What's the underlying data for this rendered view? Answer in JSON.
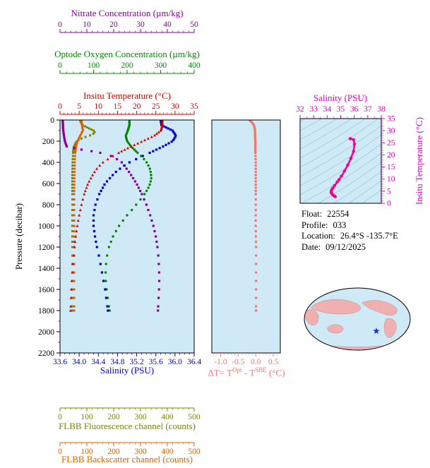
{
  "info": {
    "lines": [
      {
        "label": "Float:",
        "value": "22554"
      },
      {
        "label": "Profile:",
        "value": "033"
      },
      {
        "label": "Location:",
        "value": "26.4°S -135.7°E"
      },
      {
        "label": "Date:",
        "value": "09/12/2025"
      }
    ]
  },
  "colors": {
    "plot_background": "#cfe9f6",
    "axis_black": "#000000",
    "contour_line": "#90c8da",
    "map_land": "#f0b0b0",
    "map_ocean": "#cfe9f6",
    "star_blue": "#2233cc"
  },
  "chart_data": [
    {
      "id": "main-profile",
      "type": "line",
      "ylabel": "Pressure (decibar)",
      "ylim": [
        0,
        2200
      ],
      "yticks": [
        0,
        200,
        400,
        600,
        800,
        1000,
        1200,
        1400,
        1600,
        1800,
        2000,
        2200
      ],
      "axes": [
        {
          "key": "nitrate",
          "label": "Nitrate Concentration (µm/kg)",
          "color": "#880099",
          "range": [
            0,
            50
          ],
          "ticks": [
            "0",
            "10",
            "20",
            "30",
            "40",
            "50"
          ],
          "minor_step": 2
        },
        {
          "key": "oxygen",
          "label": "Optode Oxygen Concentration (µm/kg)",
          "color": "#008800",
          "range": [
            0,
            400
          ],
          "ticks": [
            "0",
            "100",
            "200",
            "300",
            "400"
          ],
          "minor_step": 20
        },
        {
          "key": "temperature",
          "label": "Insitu Temperature (°C)",
          "color": "#d40000",
          "range": [
            0,
            35
          ],
          "ticks": [
            "0",
            "5",
            "10",
            "15",
            "20",
            "25",
            "30",
            "35"
          ],
          "minor_step": 1
        },
        {
          "key": "salinity",
          "label": "Salinity (PSU)",
          "color": "#0000cc",
          "range": [
            33.6,
            36.4
          ],
          "ticks": [
            "33.6",
            "34.0",
            "34.4",
            "34.8",
            "35.2",
            "35.6",
            "36.0",
            "36.4"
          ],
          "minor_step": 0.1
        },
        {
          "key": "fluorescence",
          "label": "FLBB Fluorescence channel (counts)",
          "color": "#808000",
          "range": [
            0,
            500
          ],
          "ticks": [
            "0",
            "100",
            "200",
            "300",
            "400",
            "500"
          ],
          "minor_step": 20
        },
        {
          "key": "backscatter",
          "label": "FLBB Backscatter channel (counts)",
          "color": "#e06000",
          "range": [
            0,
            500
          ],
          "ticks": [
            "0",
            "100",
            "200",
            "300",
            "400",
            "500"
          ],
          "minor_step": 20
        }
      ],
      "series": {
        "temperature": [
          [
            0,
            26.7
          ],
          [
            50,
            26.7
          ],
          [
            100,
            26.3
          ],
          [
            150,
            24.5
          ],
          [
            200,
            21.5
          ],
          [
            250,
            18.5
          ],
          [
            300,
            15.8
          ],
          [
            350,
            13.3
          ],
          [
            400,
            11.2
          ],
          [
            450,
            9.8
          ],
          [
            500,
            8.8
          ],
          [
            600,
            7.3
          ],
          [
            700,
            6.3
          ],
          [
            800,
            5.6
          ],
          [
            900,
            5.0
          ],
          [
            1000,
            4.5
          ],
          [
            1100,
            4.1
          ],
          [
            1200,
            3.8
          ],
          [
            1300,
            3.5
          ],
          [
            1400,
            3.3
          ],
          [
            1500,
            3.1
          ],
          [
            1600,
            2.95
          ],
          [
            1700,
            2.85
          ],
          [
            1800,
            2.75
          ]
        ],
        "salinity": [
          [
            0,
            35.7
          ],
          [
            50,
            35.72
          ],
          [
            100,
            35.95
          ],
          [
            150,
            36.02
          ],
          [
            200,
            35.95
          ],
          [
            250,
            35.75
          ],
          [
            300,
            35.52
          ],
          [
            350,
            35.28
          ],
          [
            400,
            35.05
          ],
          [
            450,
            34.88
          ],
          [
            500,
            34.74
          ],
          [
            600,
            34.54
          ],
          [
            700,
            34.42
          ],
          [
            800,
            34.34
          ],
          [
            900,
            34.3
          ],
          [
            1000,
            34.3
          ],
          [
            1100,
            34.33
          ],
          [
            1200,
            34.37
          ],
          [
            1300,
            34.42
          ],
          [
            1400,
            34.46
          ],
          [
            1500,
            34.5
          ],
          [
            1600,
            34.54
          ],
          [
            1700,
            34.57
          ],
          [
            1800,
            34.6
          ]
        ],
        "oxygen": [
          [
            0,
            207
          ],
          [
            50,
            207
          ],
          [
            100,
            202
          ],
          [
            150,
            196
          ],
          [
            200,
            200
          ],
          [
            250,
            212
          ],
          [
            300,
            228
          ],
          [
            350,
            245
          ],
          [
            400,
            258
          ],
          [
            450,
            267
          ],
          [
            500,
            271
          ],
          [
            550,
            272
          ],
          [
            600,
            269
          ],
          [
            650,
            262
          ],
          [
            700,
            252
          ],
          [
            750,
            240
          ],
          [
            800,
            227
          ],
          [
            850,
            214
          ],
          [
            900,
            200
          ],
          [
            950,
            188
          ],
          [
            1000,
            176
          ],
          [
            1100,
            158
          ],
          [
            1200,
            146
          ],
          [
            1300,
            139
          ],
          [
            1400,
            136
          ],
          [
            1500,
            136
          ],
          [
            1600,
            139
          ],
          [
            1700,
            143
          ],
          [
            1800,
            148
          ]
        ],
        "nitrate": [
          [
            0,
            1.0
          ],
          [
            100,
            1.2
          ],
          [
            200,
            1.8
          ],
          [
            250,
            2.5
          ],
          [
            280,
            8.0
          ],
          [
            300,
            13.0
          ],
          [
            320,
            17.0
          ],
          [
            350,
            20.0
          ],
          [
            400,
            23.0
          ],
          [
            500,
            26.0
          ],
          [
            600,
            28.5
          ],
          [
            700,
            30.5
          ],
          [
            800,
            32.2
          ],
          [
            900,
            33.6
          ],
          [
            1000,
            34.8
          ],
          [
            1100,
            35.7
          ],
          [
            1200,
            36.3
          ],
          [
            1300,
            36.7
          ],
          [
            1400,
            36.9
          ],
          [
            1500,
            37.0
          ],
          [
            1600,
            36.9
          ],
          [
            1700,
            36.7
          ],
          [
            1800,
            36.5
          ]
        ],
        "fluorescence": [
          [
            0,
            75
          ],
          [
            25,
            78
          ],
          [
            50,
            85
          ],
          [
            75,
            105
          ],
          [
            100,
            125
          ],
          [
            120,
            130
          ],
          [
            140,
            118
          ],
          [
            160,
            95
          ],
          [
            180,
            75
          ],
          [
            200,
            62
          ],
          [
            250,
            52
          ],
          [
            300,
            49
          ],
          [
            400,
            47
          ],
          [
            500,
            46
          ],
          [
            700,
            46
          ],
          [
            1000,
            46
          ],
          [
            1400,
            46
          ],
          [
            1800,
            46
          ]
        ],
        "backscatter": [
          [
            0,
            80
          ],
          [
            50,
            82
          ],
          [
            100,
            85
          ],
          [
            150,
            75
          ],
          [
            200,
            65
          ],
          [
            250,
            60
          ],
          [
            300,
            57
          ],
          [
            400,
            55
          ],
          [
            500,
            54
          ],
          [
            700,
            53
          ],
          [
            1000,
            53
          ],
          [
            1400,
            53
          ],
          [
            1800,
            53
          ]
        ]
      }
    },
    {
      "id": "delta-t",
      "type": "scatter",
      "color": "#f07870",
      "xlim": [
        -1.25,
        0.7
      ],
      "xticks": [
        "-1.0",
        "-0.5",
        "0.0",
        "0.5"
      ],
      "label_parts": {
        "prefix": "ΔT= T",
        "sup1": "Opt",
        "mid": " - T",
        "sup2": "SBE",
        "suffix": " (°C)"
      },
      "points": [
        [
          0,
          -0.18
        ],
        [
          25,
          -0.1
        ],
        [
          50,
          -0.05
        ],
        [
          75,
          -0.03
        ],
        [
          100,
          -0.02
        ],
        [
          150,
          -0.02
        ],
        [
          200,
          -0.01
        ],
        [
          300,
          -0.01
        ],
        [
          400,
          0.0
        ],
        [
          500,
          0.0
        ],
        [
          600,
          0.0
        ],
        [
          800,
          0.0
        ],
        [
          1000,
          0.0
        ],
        [
          1200,
          0.01
        ],
        [
          1400,
          0.01
        ],
        [
          1600,
          0.01
        ],
        [
          1800,
          0.01
        ]
      ]
    },
    {
      "id": "ts-diagram",
      "type": "line",
      "xlabel": "Salinity (PSU)",
      "ylabel": "Insitu Temperature (°C)",
      "color": "#f00090",
      "label_color": "#e000c0",
      "xlim": [
        32,
        38
      ],
      "xticks": [
        "32",
        "33",
        "34",
        "35",
        "36",
        "37",
        "38"
      ],
      "ylim": [
        0,
        35
      ],
      "yticks": [
        "0",
        "5",
        "10",
        "15",
        "20",
        "25",
        "30",
        "35"
      ],
      "points": [
        [
          35.7,
          26.7
        ],
        [
          35.72,
          26.7
        ],
        [
          35.95,
          26.3
        ],
        [
          36.02,
          24.5
        ],
        [
          35.95,
          21.5
        ],
        [
          35.75,
          18.5
        ],
        [
          35.52,
          15.8
        ],
        [
          35.28,
          13.3
        ],
        [
          35.05,
          11.2
        ],
        [
          34.88,
          9.8
        ],
        [
          34.74,
          8.8
        ],
        [
          34.54,
          7.3
        ],
        [
          34.42,
          6.3
        ],
        [
          34.34,
          5.6
        ],
        [
          34.3,
          5.0
        ],
        [
          34.3,
          4.5
        ],
        [
          34.33,
          4.1
        ],
        [
          34.37,
          3.8
        ],
        [
          34.42,
          3.5
        ],
        [
          34.46,
          3.3
        ],
        [
          34.5,
          3.1
        ],
        [
          34.54,
          2.95
        ],
        [
          34.57,
          2.85
        ],
        [
          34.6,
          2.75
        ]
      ]
    }
  ]
}
